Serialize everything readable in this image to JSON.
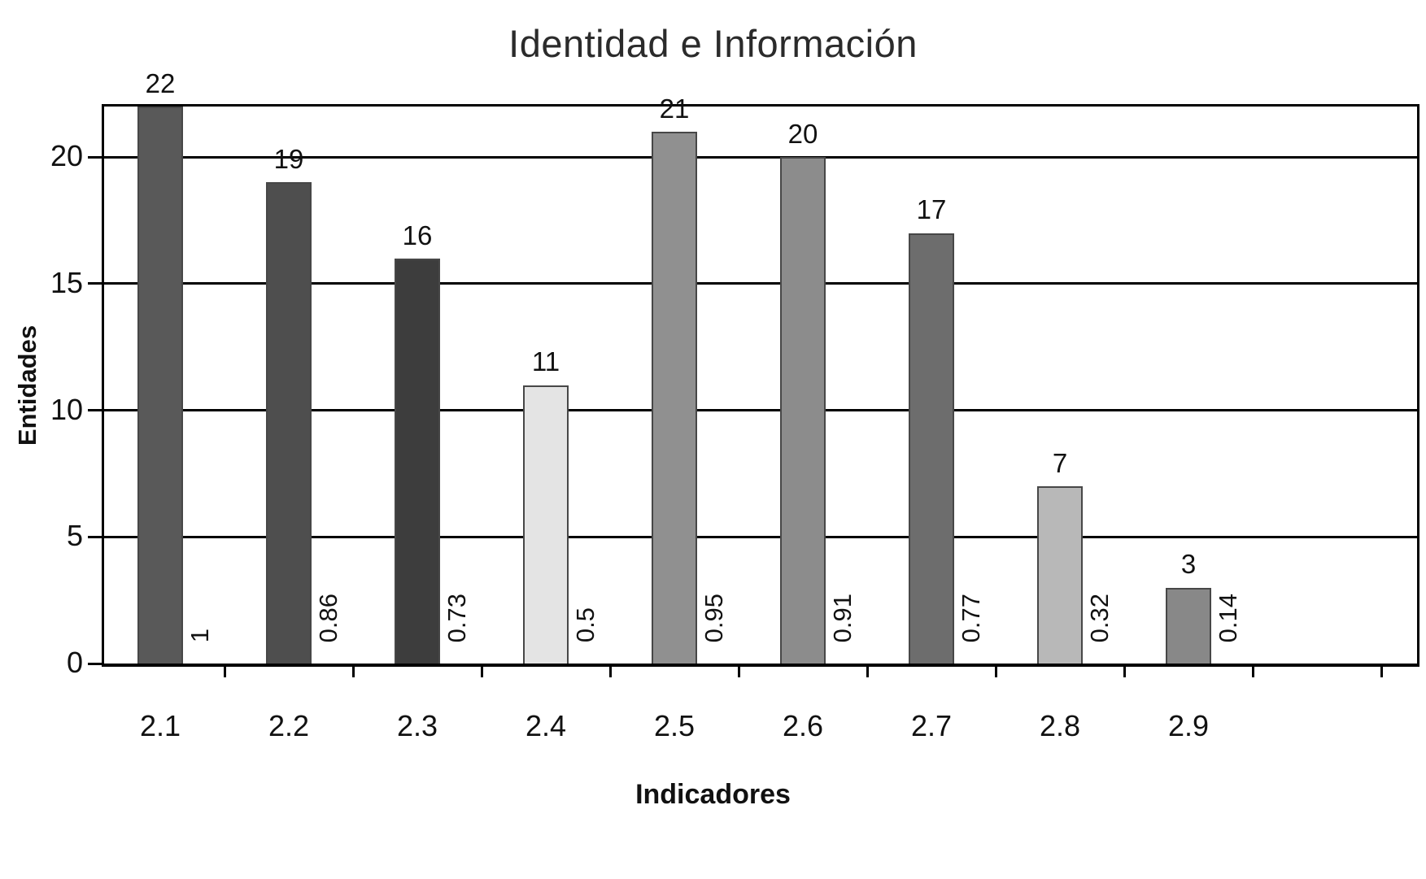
{
  "chart_data": {
    "type": "bar",
    "title": "Identidad e Información",
    "xlabel": "Indicadores",
    "ylabel": "Entidades",
    "categories": [
      "2.1",
      "2.2",
      "2.3",
      "2.4",
      "2.5",
      "2.6",
      "2.7",
      "2.8",
      "2.9"
    ],
    "values": [
      22,
      19,
      16,
      11,
      21,
      20,
      17,
      7,
      3
    ],
    "bar_side_labels": [
      "1",
      "0.86",
      "0.73",
      "0.5",
      "0.95",
      "0.91",
      "0.77",
      "0.32",
      "0.14"
    ],
    "bar_colors": [
      "#595959",
      "#4e4e4e",
      "#3d3d3d",
      "#e4e4e4",
      "#909090",
      "#8c8c8c",
      "#6d6d6d",
      "#b8b8b8",
      "#888888"
    ],
    "ylim": [
      0,
      22
    ],
    "yticks": [
      0,
      5,
      10,
      15,
      20
    ],
    "grid": true,
    "legend": false,
    "background": "#ffffff",
    "axis_color": "#000000",
    "text_color": "#111111"
  }
}
